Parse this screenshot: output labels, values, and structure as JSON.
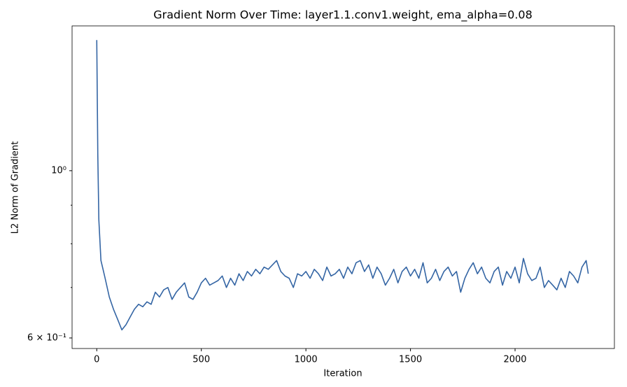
{
  "chart_data": {
    "type": "line",
    "title": "Gradient Norm Over Time: layer1.1.conv1.weight, ema_alpha=0.08",
    "xlabel": "Iteration",
    "ylabel": "L2 Norm of Gradient",
    "xlim": [
      -118,
      2475
    ],
    "ylim": [
      0.581,
      1.556
    ],
    "xticks": [
      0,
      500,
      1000,
      1500,
      2000
    ],
    "yticks": [
      {
        "value": 0.6,
        "label": "6 × 10⁻¹"
      },
      {
        "value": 1,
        "label": "10⁰"
      }
    ],
    "yminorticks": [
      0.7,
      0.8,
      0.9
    ],
    "ylog": true,
    "grid": false,
    "series": [
      {
        "name": "layer1.1.conv1.weight",
        "color": "#3465a4",
        "x": [
          0,
          5,
          10,
          20,
          30,
          40,
          60,
          80,
          100,
          120,
          140,
          160,
          180,
          200,
          220,
          240,
          260,
          280,
          300,
          320,
          340,
          360,
          380,
          400,
          420,
          440,
          460,
          480,
          500,
          520,
          540,
          560,
          580,
          600,
          620,
          640,
          660,
          680,
          700,
          720,
          740,
          760,
          780,
          800,
          820,
          840,
          860,
          880,
          900,
          920,
          940,
          960,
          980,
          1000,
          1020,
          1040,
          1060,
          1080,
          1100,
          1120,
          1140,
          1160,
          1180,
          1200,
          1220,
          1240,
          1260,
          1280,
          1300,
          1320,
          1340,
          1360,
          1380,
          1400,
          1420,
          1440,
          1460,
          1480,
          1500,
          1520,
          1540,
          1560,
          1580,
          1600,
          1620,
          1640,
          1660,
          1680,
          1700,
          1720,
          1740,
          1760,
          1780,
          1800,
          1820,
          1840,
          1860,
          1880,
          1900,
          1920,
          1940,
          1960,
          1980,
          2000,
          2020,
          2040,
          2060,
          2080,
          2100,
          2120,
          2140,
          2160,
          2180,
          2200,
          2220,
          2240,
          2260,
          2280,
          2300,
          2320,
          2340,
          2350
        ],
        "values": [
          1.49,
          1.05,
          0.86,
          0.76,
          0.74,
          0.72,
          0.68,
          0.655,
          0.635,
          0.615,
          0.625,
          0.64,
          0.655,
          0.665,
          0.66,
          0.67,
          0.665,
          0.69,
          0.68,
          0.695,
          0.7,
          0.675,
          0.69,
          0.7,
          0.71,
          0.68,
          0.675,
          0.69,
          0.71,
          0.72,
          0.705,
          0.71,
          0.715,
          0.725,
          0.7,
          0.72,
          0.705,
          0.73,
          0.715,
          0.735,
          0.725,
          0.74,
          0.73,
          0.745,
          0.74,
          0.75,
          0.76,
          0.735,
          0.725,
          0.72,
          0.7,
          0.73,
          0.725,
          0.735,
          0.72,
          0.74,
          0.73,
          0.715,
          0.745,
          0.725,
          0.73,
          0.74,
          0.72,
          0.745,
          0.73,
          0.755,
          0.76,
          0.735,
          0.75,
          0.72,
          0.745,
          0.73,
          0.705,
          0.72,
          0.74,
          0.71,
          0.735,
          0.745,
          0.725,
          0.74,
          0.72,
          0.755,
          0.71,
          0.72,
          0.74,
          0.715,
          0.735,
          0.745,
          0.725,
          0.735,
          0.69,
          0.72,
          0.74,
          0.755,
          0.73,
          0.745,
          0.72,
          0.71,
          0.735,
          0.745,
          0.705,
          0.735,
          0.72,
          0.745,
          0.71,
          0.765,
          0.73,
          0.715,
          0.72,
          0.745,
          0.7,
          0.715,
          0.705,
          0.695,
          0.72,
          0.7,
          0.735,
          0.725,
          0.71,
          0.745,
          0.76,
          0.73
        ]
      }
    ]
  }
}
